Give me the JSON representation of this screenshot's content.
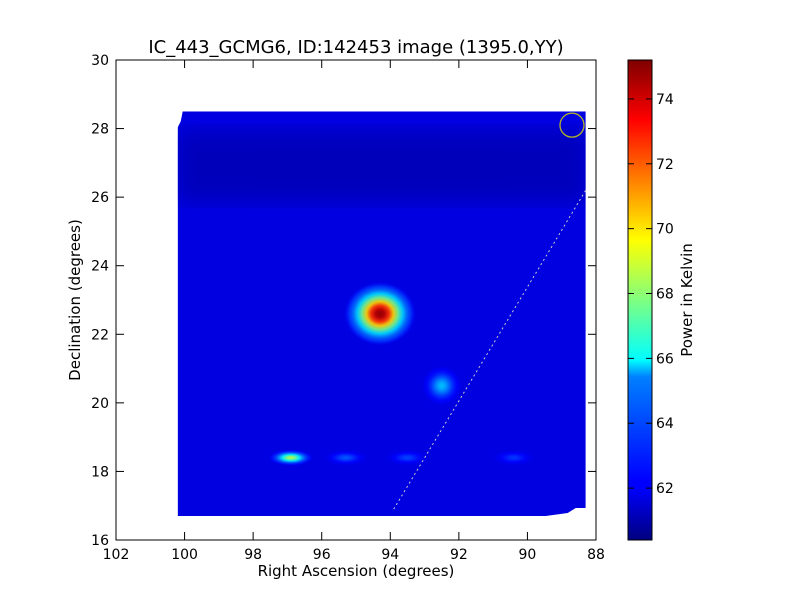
{
  "chart_data": {
    "type": "heatmap",
    "title": "IC_443_GCMG6, ID:142453 image (1395.0,YY)",
    "xlabel": "Right Ascension (degrees)",
    "ylabel": "Declination (degrees)",
    "xlim": [
      102,
      88
    ],
    "ylim": [
      16,
      30
    ],
    "x_ticks": [
      102,
      100,
      98,
      96,
      94,
      92,
      90,
      88
    ],
    "y_ticks": [
      16,
      18,
      20,
      22,
      24,
      26,
      28,
      30
    ],
    "map_extent": {
      "ra": [
        100.2,
        88.3
      ],
      "dec": [
        16.7,
        28.5
      ]
    },
    "background_level": 61.8,
    "sources": [
      {
        "ra": 94.3,
        "dec": 22.6,
        "peak": 75.0
      },
      {
        "ra": 92.5,
        "dec": 20.5,
        "peak": 65.0
      },
      {
        "ra": 96.9,
        "dec": 18.4,
        "peak": 68.5
      },
      {
        "ra": 95.3,
        "dec": 18.4,
        "peak": 63.5
      },
      {
        "ra": 93.5,
        "dec": 18.4,
        "peak": 63.2
      },
      {
        "ra": 90.4,
        "dec": 18.4,
        "peak": 63.0
      }
    ],
    "beam_marker": {
      "ra": 88.7,
      "dec": 28.1,
      "color": "#b5b529"
    },
    "galactic_plane_line": {
      "start": [
        93.9,
        16.9
      ],
      "end": [
        88.3,
        26.2
      ],
      "color": "#cccccc"
    },
    "colorbar": {
      "label": "Power in Kelvin",
      "min": 60.4,
      "max": 75.2,
      "ticks": [
        62,
        64,
        66,
        68,
        70,
        72,
        74
      ]
    },
    "colormap": "jet"
  }
}
